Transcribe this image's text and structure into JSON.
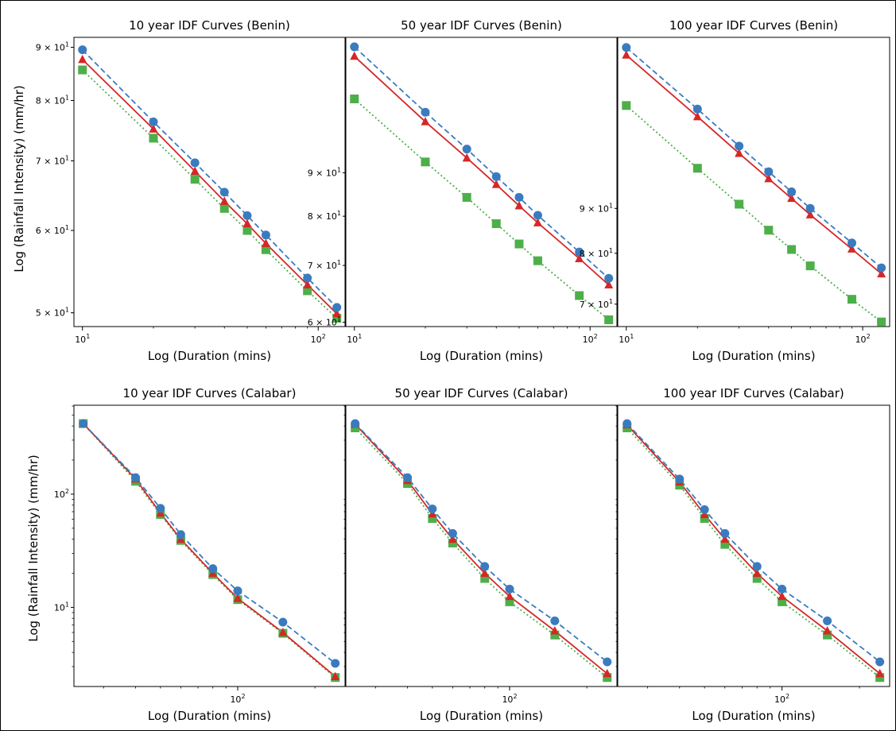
{
  "figure": {
    "row_ylabels": [
      "Log (Rainfall Intensity) (mm/hr)",
      "Log (Rainfall Intensity) (mm/hr)"
    ]
  },
  "chart_data": [
    {
      "type": "line",
      "title": "10 year IDF Curves (Benin)",
      "xlabel": "Log (Duration (mins)",
      "ylabel": "Log (Rainfall Intensity) (mm/hr)",
      "xscale": "log",
      "yscale": "log",
      "xlim": [
        9.2,
        130
      ],
      "ylim": [
        48.5,
        92
      ],
      "x_ticks": [
        {
          "v": 10,
          "b": "10",
          "e": "1"
        },
        {
          "v": 100,
          "b": "10",
          "e": "2"
        }
      ],
      "y_ticks": [
        {
          "v": 50,
          "m": "5 × 10",
          "e": "1"
        },
        {
          "v": 60,
          "m": "6 × 10",
          "e": "1"
        },
        {
          "v": 70,
          "m": "7 × 10",
          "e": "1"
        },
        {
          "v": 80,
          "m": "8 × 10",
          "e": "1"
        },
        {
          "v": 90,
          "m": "9 × 10",
          "e": "1"
        }
      ],
      "x": [
        10,
        20,
        30,
        40,
        50,
        60,
        90,
        120
      ],
      "series": [
        {
          "marker": "circle",
          "color": "#3a7bbf",
          "dash": "7,4",
          "values": [
            89.5,
            76.3,
            69.7,
            65.3,
            62.0,
            59.4,
            54.0,
            50.6
          ]
        },
        {
          "marker": "triangle",
          "color": "#d62728",
          "dash": "",
          "values": [
            87.6,
            75.1,
            68.4,
            64.0,
            60.9,
            58.3,
            53.2,
            49.9
          ]
        },
        {
          "marker": "square",
          "color": "#4daf4a",
          "dash": "2,3",
          "values": [
            85.6,
            73.6,
            67.2,
            63.0,
            60.0,
            57.5,
            52.5,
            49.4
          ]
        }
      ]
    },
    {
      "type": "line",
      "title": "50 year IDF Curves (Benin)",
      "xlabel": "Log (Duration (mins)",
      "xscale": "log",
      "yscale": "log",
      "xlim": [
        9.2,
        130
      ],
      "ylim": [
        59.3,
        130
      ],
      "x_ticks": [
        {
          "v": 10,
          "b": "10",
          "e": "1"
        },
        {
          "v": 100,
          "b": "10",
          "e": "2"
        }
      ],
      "y_ticks": [
        {
          "v": 60,
          "m": "6 × 10",
          "e": "1"
        },
        {
          "v": 70,
          "m": "7 × 10",
          "e": "1"
        },
        {
          "v": 80,
          "m": "8 × 10",
          "e": "1"
        },
        {
          "v": 90,
          "m": "9 × 10",
          "e": "1"
        }
      ],
      "x": [
        10,
        20,
        30,
        40,
        50,
        60,
        90,
        120
      ],
      "series": [
        {
          "marker": "circle",
          "color": "#3a7bbf",
          "dash": "7,4",
          "values": [
            126.7,
            106.1,
            96.0,
            89.1,
            84.2,
            80.2,
            72.6,
            67.6
          ]
        },
        {
          "marker": "triangle",
          "color": "#d62728",
          "dash": "",
          "values": [
            123.5,
            103.4,
            93.7,
            87.2,
            82.3,
            78.6,
            71.3,
            66.4
          ]
        },
        {
          "marker": "square",
          "color": "#4daf4a",
          "dash": "2,3",
          "values": [
            110.0,
            92.7,
            84.2,
            78.4,
            74.2,
            70.9,
            64.5,
            60.4
          ]
        }
      ]
    },
    {
      "type": "line",
      "title": "100 year IDF Curves (Benin)",
      "xlabel": "Log (Duration (mins)",
      "xscale": "log",
      "yscale": "log",
      "xlim": [
        9.2,
        130
      ],
      "ylim": [
        66,
        141
      ],
      "x_ticks": [
        {
          "v": 10,
          "b": "10",
          "e": "1"
        },
        {
          "v": 100,
          "b": "10",
          "e": "2"
        }
      ],
      "y_ticks": [
        {
          "v": 70,
          "m": "7 × 10",
          "e": "1"
        },
        {
          "v": 80,
          "m": "8 × 10",
          "e": "1"
        },
        {
          "v": 90,
          "m": "9 × 10",
          "e": "1"
        }
      ],
      "x": [
        10,
        20,
        30,
        40,
        50,
        60,
        90,
        120
      ],
      "series": [
        {
          "marker": "circle",
          "color": "#3a7bbf",
          "dash": "7,4",
          "values": [
            137.3,
            116.8,
            106.0,
            99.1,
            94.0,
            90.0,
            82.2,
            77.0
          ]
        },
        {
          "marker": "triangle",
          "color": "#d62728",
          "dash": "",
          "values": [
            134.6,
            114.5,
            104.0,
            97.3,
            92.4,
            88.5,
            80.9,
            75.8
          ]
        },
        {
          "marker": "square",
          "color": "#4daf4a",
          "dash": "2,3",
          "values": [
            117.9,
            100.0,
            91.0,
            85.0,
            80.8,
            77.4,
            70.9,
            66.8
          ]
        }
      ]
    },
    {
      "type": "line",
      "title": "10 year IDF Curves (Calabar)",
      "xlabel": "Log (Duration (mins)",
      "ylabel": "Log (Rainfall Intensity) (mm/hr)",
      "xscale": "log",
      "yscale": "log",
      "xlim": [
        23,
        262
      ],
      "ylim": [
        2.0,
        610
      ],
      "x_ticks": [
        {
          "v": 100,
          "b": "10",
          "e": "2"
        }
      ],
      "y_ticks": [
        {
          "v": 10,
          "m": "10",
          "e": "1"
        },
        {
          "v": 100,
          "m": "10",
          "e": "2"
        }
      ],
      "x": [
        25,
        40,
        50,
        60,
        80,
        100,
        150,
        240
      ],
      "series": [
        {
          "marker": "circle",
          "color": "#3a7bbf",
          "dash": "7,4",
          "values": [
            420,
            140,
            75,
            44,
            22,
            14,
            7.4,
            3.2
          ]
        },
        {
          "marker": "triangle",
          "color": "#d62728",
          "dash": "",
          "values": [
            420,
            136,
            68,
            40,
            20,
            12,
            6.0,
            2.45
          ]
        },
        {
          "marker": "square",
          "color": "#4daf4a",
          "dash": "2,3",
          "values": [
            420,
            130,
            66,
            39,
            19.5,
            11.7,
            5.9,
            2.4
          ]
        }
      ]
    },
    {
      "type": "line",
      "title": "50 year IDF Curves (Calabar)",
      "xlabel": "Log (Duration (mins)",
      "xscale": "log",
      "yscale": "log",
      "xlim": [
        23,
        262
      ],
      "ylim": [
        2.0,
        610
      ],
      "x_ticks": [
        {
          "v": 100,
          "b": "10",
          "e": "2"
        }
      ],
      "y_ticks": [],
      "x": [
        25,
        40,
        50,
        60,
        80,
        100,
        150,
        240
      ],
      "series": [
        {
          "marker": "circle",
          "color": "#3a7bbf",
          "dash": "7,4",
          "values": [
            420,
            140,
            74,
            45,
            23,
            14.5,
            7.6,
            3.3
          ]
        },
        {
          "marker": "triangle",
          "color": "#d62728",
          "dash": "",
          "values": [
            415,
            132,
            67,
            40,
            20,
            12.5,
            6.2,
            2.6
          ]
        },
        {
          "marker": "square",
          "color": "#4daf4a",
          "dash": "2,3",
          "values": [
            385,
            124,
            61,
            37,
            18,
            11.2,
            5.7,
            2.4
          ]
        }
      ]
    },
    {
      "type": "line",
      "title": "100 year IDF Curves (Calabar)",
      "xlabel": "Log (Duration (mins)",
      "xscale": "log",
      "yscale": "log",
      "xlim": [
        23,
        262
      ],
      "ylim": [
        2.0,
        610
      ],
      "x_ticks": [
        {
          "v": 100,
          "b": "10",
          "e": "2"
        }
      ],
      "y_ticks": [],
      "x": [
        25,
        40,
        50,
        60,
        80,
        100,
        150,
        240
      ],
      "series": [
        {
          "marker": "circle",
          "color": "#3a7bbf",
          "dash": "7,4",
          "values": [
            420,
            136,
            73,
            45,
            23,
            14.5,
            7.6,
            3.3
          ]
        },
        {
          "marker": "triangle",
          "color": "#d62728",
          "dash": "",
          "values": [
            410,
            128,
            66,
            40,
            20,
            12.5,
            6.2,
            2.6
          ]
        },
        {
          "marker": "square",
          "color": "#4daf4a",
          "dash": "2,3",
          "values": [
            385,
            120,
            61,
            36,
            18,
            11.2,
            5.7,
            2.4
          ]
        }
      ]
    }
  ]
}
